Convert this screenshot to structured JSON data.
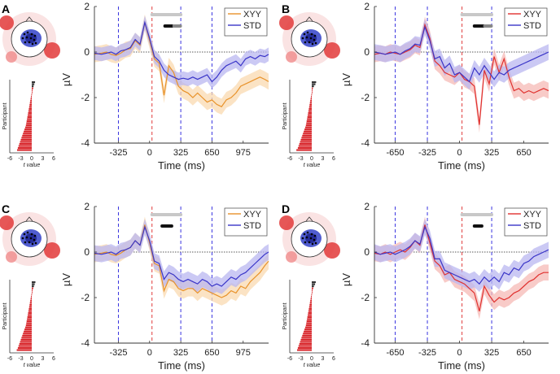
{
  "figure": {
    "ylabel": "µV",
    "xlabel": "Time (ms)",
    "bar_ylabel": "Participant",
    "bar_xlabel": "t value",
    "bar_ticks": [
      "-6",
      "-3",
      "0",
      "3",
      "6"
    ]
  },
  "colors": {
    "std": "#3a35c8",
    "std_band": "#b9b7f0",
    "xyy_orange": "#e8922a",
    "xyy_orange_band": "#f9d9b0",
    "xyy_red": "#e0312f",
    "xyy_red_band": "#f6b9b5",
    "vline_blue": "#3a35e0",
    "vline_red": "#e03b3b",
    "sig_light": "#c8c8c8",
    "sig_dark": "#111111",
    "sig_mid": "#888888"
  },
  "chart_data": [
    {
      "type": "line",
      "panel": "A",
      "legend": [
        "XYY",
        "STD"
      ],
      "legend_position": "top-right",
      "xlim": [
        -575,
        1240
      ],
      "ylim": [
        -4,
        2
      ],
      "xticks": [
        -325,
        0,
        325,
        650,
        975
      ],
      "yticks": [
        -4,
        -2,
        0,
        2
      ],
      "vlines_blue": [
        -325,
        325,
        650
      ],
      "vline_red": 25,
      "sig_light": [
        25,
        325
      ],
      "sig_dark": [
        [
          160,
          235
        ]
      ],
      "sig_mid": [
        [
          255,
          320
        ]
      ],
      "x": [
        -575,
        -500,
        -450,
        -400,
        -350,
        -300,
        -250,
        -200,
        -150,
        -100,
        -50,
        0,
        50,
        100,
        150,
        200,
        250,
        300,
        350,
        400,
        450,
        500,
        550,
        600,
        650,
        700,
        750,
        800,
        850,
        900,
        950,
        1000,
        1050,
        1100,
        1150,
        1200,
        1240
      ],
      "series": [
        {
          "name": "XYY",
          "values": [
            -0.1,
            -0.05,
            0.0,
            -0.1,
            -0.15,
            -0.05,
            0.1,
            0.15,
            0.5,
            0.3,
            1.3,
            0.5,
            -0.3,
            -0.5,
            -1.9,
            -0.6,
            -0.9,
            -1.5,
            -1.7,
            -1.8,
            -2.0,
            -1.8,
            -2.0,
            -2.2,
            -2.1,
            -2.3,
            -2.4,
            -2.1,
            -2.0,
            -1.8,
            -1.5,
            -1.4,
            -1.3,
            -1.2,
            -1.1,
            -1.2,
            -1.3
          ],
          "band": 0.35,
          "color_key": "xyy_orange",
          "band_key": "xyy_orange_band"
        },
        {
          "name": "STD",
          "values": [
            -0.05,
            -0.1,
            -0.05,
            0.0,
            -0.1,
            0.05,
            0.1,
            0.2,
            0.55,
            0.35,
            1.3,
            0.6,
            -0.2,
            -0.4,
            -0.8,
            -1.0,
            -1.1,
            -1.2,
            -1.15,
            -1.2,
            -1.1,
            -1.2,
            -1.1,
            -1.0,
            -1.3,
            -1.1,
            -0.8,
            -0.6,
            -0.5,
            -0.4,
            -0.6,
            -0.3,
            -0.2,
            -0.3,
            -0.15,
            -0.2,
            -0.1
          ],
          "band": 0.3,
          "color_key": "std",
          "band_key": "std_band"
        }
      ],
      "bar_values": [
        0.9,
        0.7,
        0.5,
        0.4,
        0.2,
        0.0,
        -0.1,
        -0.2,
        -0.3,
        -0.4,
        -0.5,
        -0.6,
        -0.7,
        -0.8,
        -0.9,
        -1.0,
        -1.1,
        -1.2,
        -1.3,
        -1.4,
        -1.5,
        -1.6,
        -1.8,
        -2.0,
        -2.2,
        -2.4,
        -2.6,
        -2.8,
        -3.0,
        -3.2,
        -3.4,
        -3.6,
        -3.8,
        -4.0
      ],
      "bar_xlim": [
        -6,
        6
      ]
    },
    {
      "type": "line",
      "panel": "B",
      "legend": [
        "XYY",
        "STD"
      ],
      "legend_position": "top-right",
      "xlim": [
        -860,
        900
      ],
      "ylim": [
        -4,
        2
      ],
      "xticks": [
        -650,
        -325,
        0,
        325,
        650
      ],
      "yticks": [
        -4,
        -2,
        0,
        2
      ],
      "vlines_blue": [
        -650,
        -325,
        325
      ],
      "vline_red": 25,
      "sig_light": [
        25,
        325
      ],
      "sig_dark": [
        [
          150,
          250
        ]
      ],
      "sig_mid": [
        [
          255,
          320
        ]
      ],
      "x": [
        -860,
        -800,
        -750,
        -700,
        -650,
        -600,
        -550,
        -500,
        -450,
        -400,
        -350,
        -300,
        -250,
        -200,
        -150,
        -100,
        -50,
        0,
        50,
        100,
        150,
        200,
        250,
        300,
        350,
        400,
        450,
        500,
        550,
        600,
        650,
        700,
        750,
        800,
        850,
        900
      ],
      "series": [
        {
          "name": "XYY",
          "values": [
            -0.1,
            -0.05,
            -0.1,
            0.0,
            -0.05,
            -0.1,
            0.0,
            0.1,
            0.3,
            0.2,
            1.2,
            0.6,
            -0.4,
            -0.6,
            -0.9,
            -1.0,
            -1.1,
            -0.9,
            -1.2,
            -1.3,
            -1.5,
            -3.2,
            -0.8,
            -1.4,
            -0.2,
            -0.9,
            -0.3,
            -1.1,
            -1.7,
            -1.6,
            -1.8,
            -1.7,
            -1.8,
            -1.7,
            -1.6,
            -1.7
          ],
          "band": 0.35,
          "color_key": "xyy_red",
          "band_key": "xyy_red_band"
        },
        {
          "name": "STD",
          "values": [
            0.0,
            -0.05,
            -0.1,
            -0.05,
            0.0,
            -0.1,
            0.05,
            0.15,
            0.35,
            0.3,
            1.1,
            0.5,
            -0.3,
            -0.2,
            -0.7,
            -0.5,
            -1.0,
            -0.9,
            -1.1,
            -1.3,
            -0.7,
            -1.0,
            -0.6,
            -0.9,
            -1.2,
            -0.9,
            -1.0,
            -0.8,
            -0.7,
            -0.6,
            -0.5,
            -0.4,
            -0.3,
            -0.2,
            -0.1,
            0.0
          ],
          "band": 0.35,
          "color_key": "std",
          "band_key": "std_band"
        }
      ],
      "bar_values": [
        1.2,
        1.0,
        0.6,
        0.3,
        0.1,
        0.0,
        -0.1,
        -0.2,
        -0.3,
        -0.4,
        -0.5,
        -0.6,
        -0.7,
        -0.8,
        -0.9,
        -1.0,
        -1.1,
        -1.2,
        -1.3,
        -1.4,
        -1.5,
        -1.6,
        -1.8,
        -2.0,
        -2.2,
        -2.4,
        -2.6,
        -2.8,
        -3.0,
        -3.2,
        -3.4,
        -3.6,
        -3.8,
        -4.2
      ],
      "bar_xlim": [
        -6,
        6
      ]
    },
    {
      "type": "line",
      "panel": "C",
      "legend": [
        "XYY",
        "STD"
      ],
      "legend_position": "top-right",
      "xlim": [
        -575,
        1240
      ],
      "ylim": [
        -4,
        2
      ],
      "xticks": [
        -325,
        0,
        325,
        650,
        975
      ],
      "yticks": [
        -4,
        -2,
        0,
        2
      ],
      "vlines_blue": [
        -325,
        325,
        650
      ],
      "vline_red": 25,
      "sig_light": [
        25,
        325
      ],
      "sig_dark": [
        [
          130,
          230
        ]
      ],
      "sig_mid": [],
      "x": [
        -575,
        -500,
        -450,
        -400,
        -350,
        -300,
        -250,
        -200,
        -150,
        -100,
        -50,
        0,
        50,
        100,
        150,
        200,
        250,
        300,
        350,
        400,
        450,
        500,
        550,
        600,
        650,
        700,
        750,
        800,
        850,
        900,
        950,
        1000,
        1050,
        1100,
        1150,
        1200,
        1240
      ],
      "series": [
        {
          "name": "XYY",
          "values": [
            -0.1,
            -0.05,
            0.0,
            -0.1,
            -0.15,
            -0.05,
            0.1,
            0.2,
            0.5,
            0.3,
            1.2,
            0.4,
            -0.5,
            -0.6,
            -1.7,
            -1.2,
            -1.3,
            -1.6,
            -1.7,
            -1.6,
            -1.6,
            -1.8,
            -1.6,
            -1.7,
            -1.8,
            -1.9,
            -2.0,
            -1.9,
            -1.7,
            -1.8,
            -1.5,
            -1.6,
            -1.3,
            -1.1,
            -0.9,
            -0.6,
            -0.4
          ],
          "band": 0.35,
          "color_key": "xyy_orange",
          "band_key": "xyy_orange_band"
        },
        {
          "name": "STD",
          "values": [
            -0.05,
            -0.1,
            -0.05,
            0.0,
            -0.1,
            0.05,
            0.1,
            0.2,
            0.5,
            0.3,
            1.1,
            0.5,
            -0.4,
            -0.5,
            -1.2,
            -0.9,
            -1.0,
            -1.2,
            -1.3,
            -1.2,
            -1.3,
            -1.4,
            -1.2,
            -1.3,
            -1.5,
            -1.4,
            -1.5,
            -1.3,
            -1.1,
            -1.2,
            -1.0,
            -0.9,
            -0.7,
            -0.5,
            -0.3,
            -0.1,
            0.0
          ],
          "band": 0.35,
          "color_key": "std",
          "band_key": "std_band"
        }
      ],
      "bar_values": [
        1.0,
        0.8,
        0.6,
        0.4,
        0.2,
        0.0,
        -0.1,
        -0.2,
        -0.3,
        -0.4,
        -0.5,
        -0.6,
        -0.7,
        -0.8,
        -0.9,
        -1.0,
        -1.1,
        -1.2,
        -1.3,
        -1.4,
        -1.5,
        -1.6,
        -1.8,
        -2.0,
        -2.2,
        -2.4,
        -2.6,
        -2.8,
        -3.0,
        -3.2,
        -3.4,
        -3.6,
        -3.8,
        -4.1
      ],
      "bar_xlim": [
        -6,
        6
      ]
    },
    {
      "type": "line",
      "panel": "D",
      "legend": [
        "XYY",
        "STD"
      ],
      "legend_position": "top-right",
      "xlim": [
        -860,
        900
      ],
      "ylim": [
        -4,
        2
      ],
      "xticks": [
        -650,
        -325,
        0,
        325,
        650
      ],
      "yticks": [
        -4,
        -2,
        0,
        2
      ],
      "vlines_blue": [
        -650,
        -325,
        325
      ],
      "vline_red": 25,
      "sig_light": [
        25,
        325
      ],
      "sig_dark": [
        [
          150,
          225
        ]
      ],
      "sig_mid": [],
      "x": [
        -860,
        -800,
        -750,
        -700,
        -650,
        -600,
        -550,
        -500,
        -450,
        -400,
        -350,
        -300,
        -250,
        -200,
        -150,
        -100,
        -50,
        0,
        50,
        100,
        150,
        200,
        250,
        300,
        350,
        400,
        450,
        500,
        550,
        600,
        650,
        700,
        750,
        800,
        850,
        900
      ],
      "series": [
        {
          "name": "XYY",
          "values": [
            -0.05,
            -0.1,
            0.0,
            -0.1,
            0.0,
            0.1,
            0.0,
            0.2,
            0.5,
            0.3,
            1.2,
            0.4,
            -0.4,
            -0.6,
            -1.0,
            -0.9,
            -1.2,
            -1.3,
            -1.4,
            -1.6,
            -1.8,
            -2.6,
            -1.5,
            -1.9,
            -2.2,
            -2.0,
            -2.1,
            -2.0,
            -1.8,
            -1.7,
            -1.5,
            -1.3,
            -1.2,
            -1.0,
            -0.9,
            -0.9
          ],
          "band": 0.35,
          "color_key": "xyy_red",
          "band_key": "xyy_red_band"
        },
        {
          "name": "STD",
          "values": [
            0.0,
            -0.1,
            -0.05,
            0.0,
            -0.1,
            0.0,
            0.1,
            0.25,
            0.5,
            0.35,
            1.1,
            0.6,
            -0.3,
            -0.3,
            -0.8,
            -0.9,
            -1.0,
            -1.1,
            -1.2,
            -1.3,
            -1.2,
            -1.4,
            -1.1,
            -1.3,
            -1.1,
            -1.3,
            -0.9,
            -1.0,
            -0.7,
            -0.8,
            -0.5,
            -0.4,
            -0.2,
            -0.1,
            0.0,
            0.1
          ],
          "band": 0.35,
          "color_key": "std",
          "band_key": "std_band"
        }
      ],
      "bar_values": [
        1.1,
        0.9,
        0.6,
        0.4,
        0.2,
        0.0,
        -0.1,
        -0.2,
        -0.3,
        -0.4,
        -0.5,
        -0.6,
        -0.7,
        -0.8,
        -0.9,
        -1.0,
        -1.1,
        -1.2,
        -1.3,
        -1.4,
        -1.5,
        -1.6,
        -1.8,
        -2.0,
        -2.2,
        -2.4,
        -2.6,
        -2.8,
        -3.0,
        -3.2,
        -3.4,
        -3.6,
        -3.8,
        -4.0
      ],
      "bar_xlim": [
        -6,
        6
      ]
    }
  ]
}
